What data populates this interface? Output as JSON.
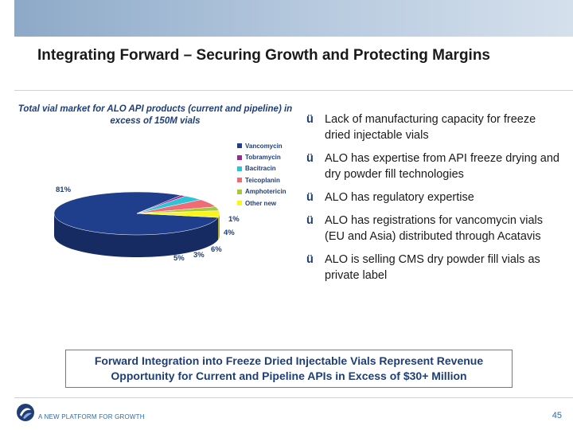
{
  "title": "Integrating Forward – Securing Growth and Protecting Margins",
  "chart_data": {
    "type": "pie",
    "title": "Total vial market for ALO API products (current and pipeline) in excess of 150M vials",
    "series": [
      {
        "name": "Vancomycin",
        "value": 81,
        "label": "81%",
        "color": "#1f3e8c"
      },
      {
        "name": "Tobramycin",
        "value": 1,
        "label": "1%",
        "color": "#9b2a8f"
      },
      {
        "name": "Bacitracin",
        "value": 4,
        "label": "4%",
        "color": "#2ec4d6"
      },
      {
        "name": "Teicoplanin",
        "value": 6,
        "label": "6%",
        "color": "#f06c74"
      },
      {
        "name": "Amphotericin",
        "value": 3,
        "label": "3%",
        "color": "#a7c837"
      },
      {
        "name": "Other new",
        "value": 5,
        "label": "5%",
        "color": "#fbf51b"
      }
    ],
    "legend_position": "right"
  },
  "bullets": [
    "Lack of manufacturing capacity for freeze dried injectable vials",
    "ALO has expertise from API freeze drying and dry powder fill technologies",
    "ALO has regulatory expertise",
    "ALO has registrations for vancomycin vials (EU and Asia) distributed through Acatavis",
    "ALO is selling CMS dry powder fill vials as private label"
  ],
  "check_glyph": "ü",
  "callout": "Forward Integration into Freeze Dried Injectable Vials Represent Revenue Opportunity for Current and Pipeline APIs in Excess of $30+ Million",
  "footer": {
    "logo_text": "A NEW PLATFORM FOR GROWTH",
    "page_number": "45",
    "logo_icon": "swirl-logo-icon"
  }
}
